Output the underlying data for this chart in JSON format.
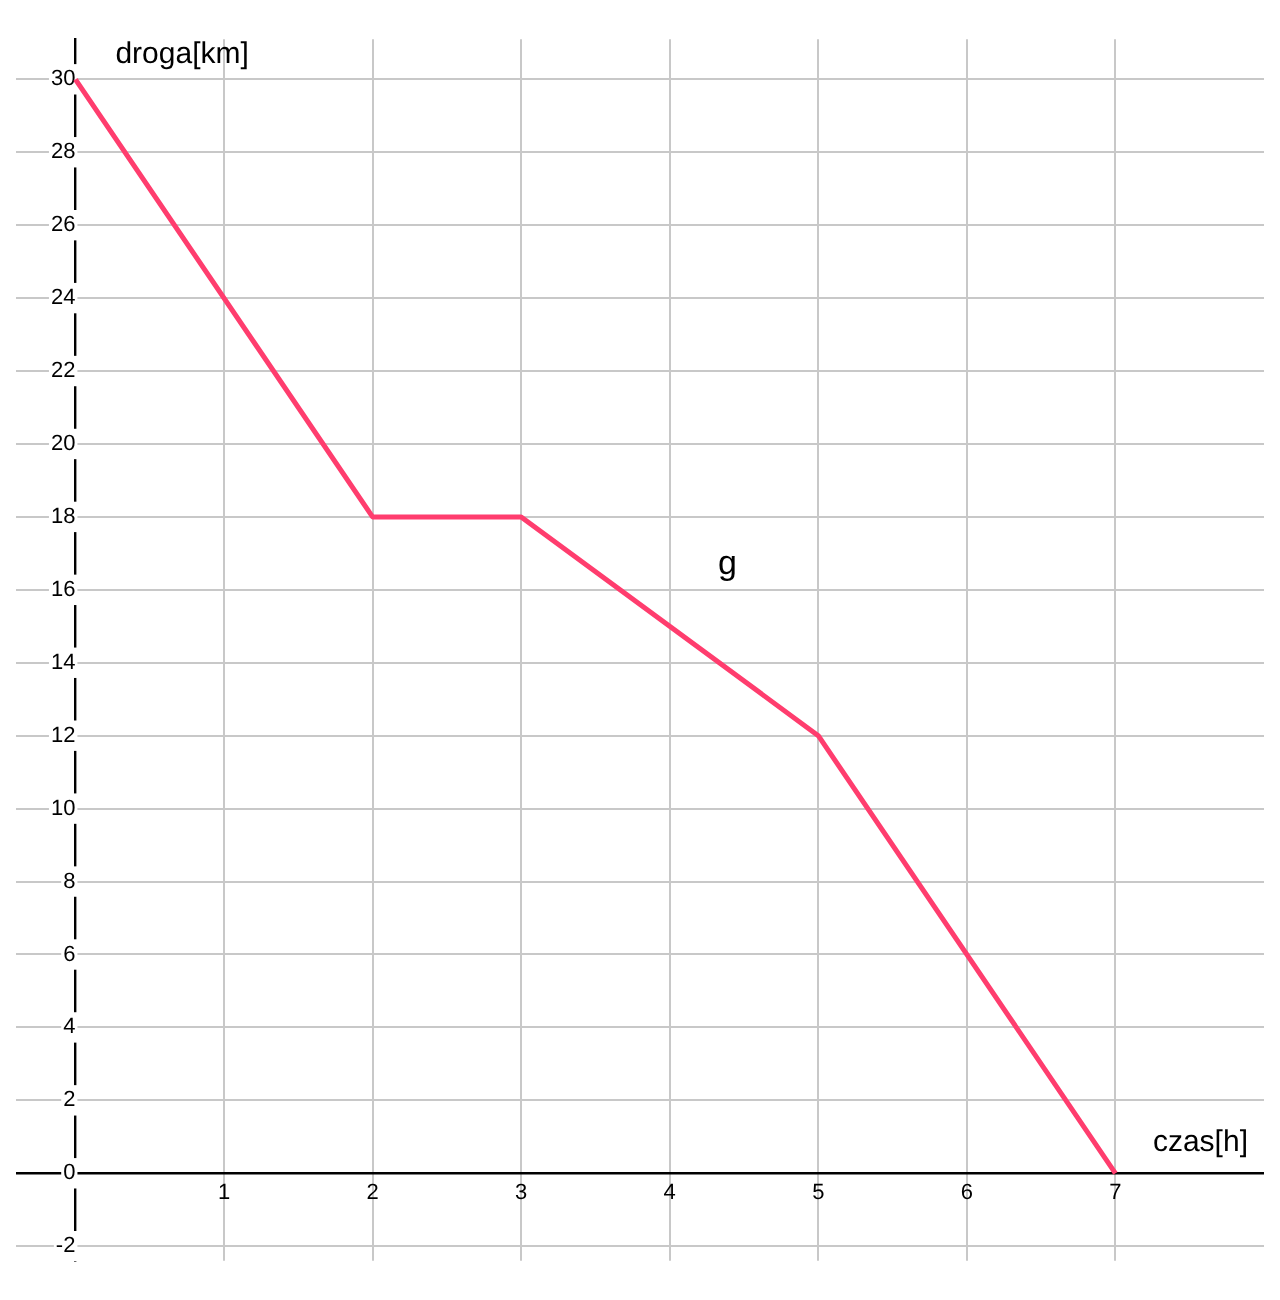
{
  "chart_data": {
    "type": "line",
    "xlabel": "czas[h]",
    "ylabel": "droga[km]",
    "x": [
      0,
      2,
      3,
      5,
      7
    ],
    "series": [
      {
        "color": "#ff3d6e",
        "values": [
          30,
          18,
          18,
          12,
          0
        ]
      }
    ],
    "xlim": [
      -0.4,
      8
    ],
    "ylim": [
      -2.4,
      31.1
    ],
    "xticks": [
      {
        "value": 0,
        "label": null
      },
      1,
      2,
      3,
      4,
      5,
      6,
      7
    ],
    "yticks": [
      -2,
      0,
      2,
      4,
      6,
      8,
      10,
      12,
      14,
      16,
      18,
      20,
      22,
      24,
      26,
      28,
      30
    ],
    "grid": true,
    "legend": false,
    "marker": "none",
    "line_style": "solid",
    "annotations": [
      "g"
    ]
  }
}
